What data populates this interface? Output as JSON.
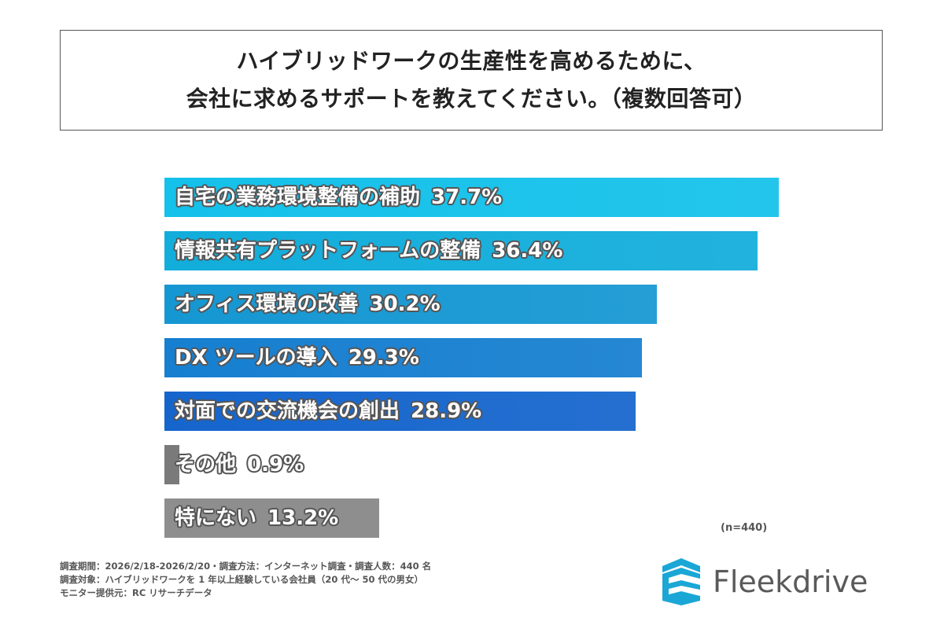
{
  "chart_data": {
    "type": "bar",
    "orientation": "horizontal",
    "title": [
      "ハイブリッドワークの生産性を高めるために、",
      "会社に求めるサポートを教えてください。（複数回答可）"
    ],
    "categories": [
      "自宅の業務環境整備の補助",
      "情報共有プラットフォームの整備",
      "オフィス環境の改善",
      "DX ツールの導入",
      "対面での交流機会の創出",
      "その他",
      "特にない"
    ],
    "values": [
      37.7,
      36.4,
      30.2,
      29.3,
      28.9,
      0.9,
      13.2
    ],
    "value_labels": [
      "37.7%",
      "36.4%",
      "30.2%",
      "29.3%",
      "28.9%",
      "0.9%",
      "13.2%"
    ],
    "colors": [
      "#14c1ea",
      "#12addb",
      "#1597d2",
      "#167fd0",
      "#1565cd",
      "#7a7a7a",
      "#8e8e8e"
    ],
    "unit": "%",
    "sample_note": "(n=440)",
    "xlabel": "",
    "ylabel": "",
    "grid": false
  },
  "footer": [
    "調査期間：2026/2/18-2026/2/20・調査方法：インターネット調査・調査人数：440 名",
    "調査対象：ハイブリッドワークを 1 年以上経験している会社員（20 代～ 50 代の男女）",
    "モニター提供元：RC リサーチデータ"
  ],
  "logo": {
    "text": "Fleekdrive",
    "color": "#1aa7d6"
  }
}
